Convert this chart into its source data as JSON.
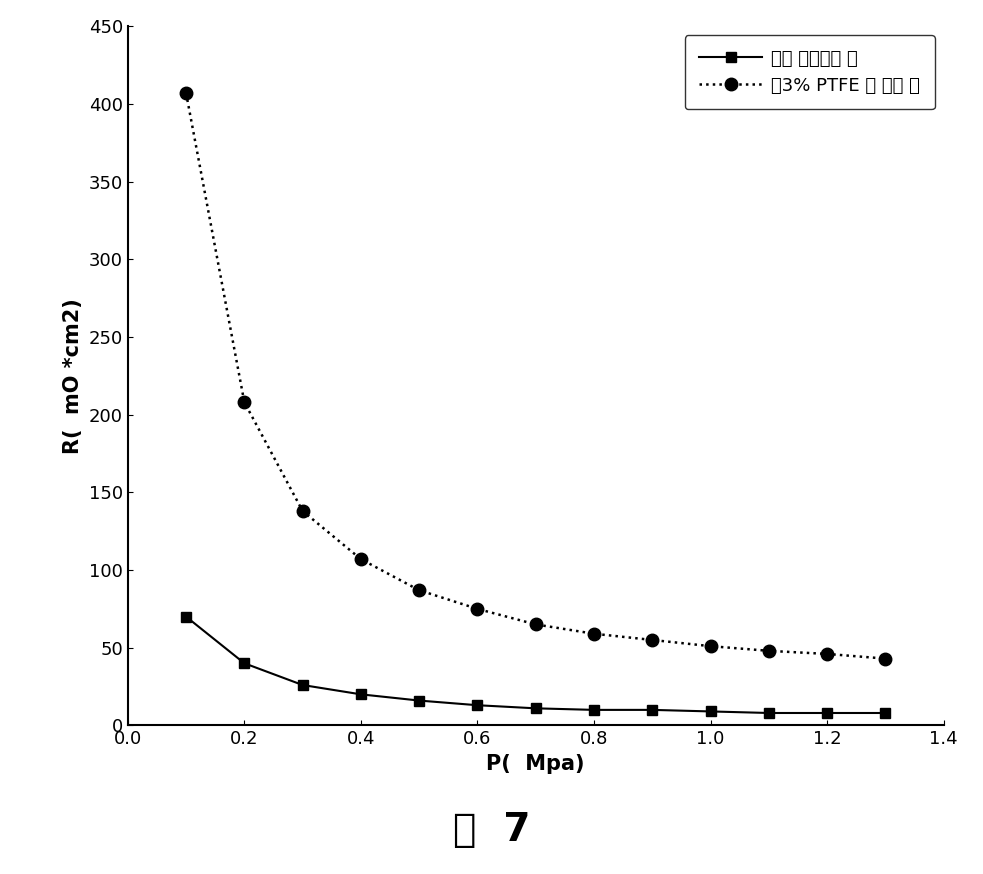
{
  "series1_label": "未憎 水处理流 场",
  "series2_label": "含3% PTFE 憎 水流 场",
  "series1_x": [
    0.1,
    0.2,
    0.3,
    0.4,
    0.5,
    0.6,
    0.7,
    0.8,
    0.9,
    1.0,
    1.1,
    1.2,
    1.3
  ],
  "series1_y": [
    70,
    40,
    26,
    20,
    16,
    13,
    11,
    10,
    10,
    9,
    8,
    8,
    8
  ],
  "series2_x": [
    0.1,
    0.2,
    0.3,
    0.4,
    0.5,
    0.6,
    0.7,
    0.8,
    0.9,
    1.0,
    1.1,
    1.2,
    1.3
  ],
  "series2_y": [
    407,
    208,
    138,
    107,
    87,
    75,
    65,
    59,
    55,
    51,
    48,
    46,
    43
  ],
  "xlabel": "P(  Mpa)",
  "ylabel": "R(  mO *cm2)",
  "xlim": [
    0.0,
    1.4
  ],
  "ylim": [
    0,
    450
  ],
  "yticks": [
    0,
    50,
    100,
    150,
    200,
    250,
    300,
    350,
    400,
    450
  ],
  "xticks": [
    0.0,
    0.2,
    0.4,
    0.6,
    0.8,
    1.0,
    1.2,
    1.4
  ],
  "caption": "图  7",
  "line1_color": "#000000",
  "line2_color": "#000000",
  "background_color": "#ffffff",
  "legend_fontsize": 13,
  "axis_fontsize": 15,
  "tick_fontsize": 13,
  "caption_fontsize": 28
}
